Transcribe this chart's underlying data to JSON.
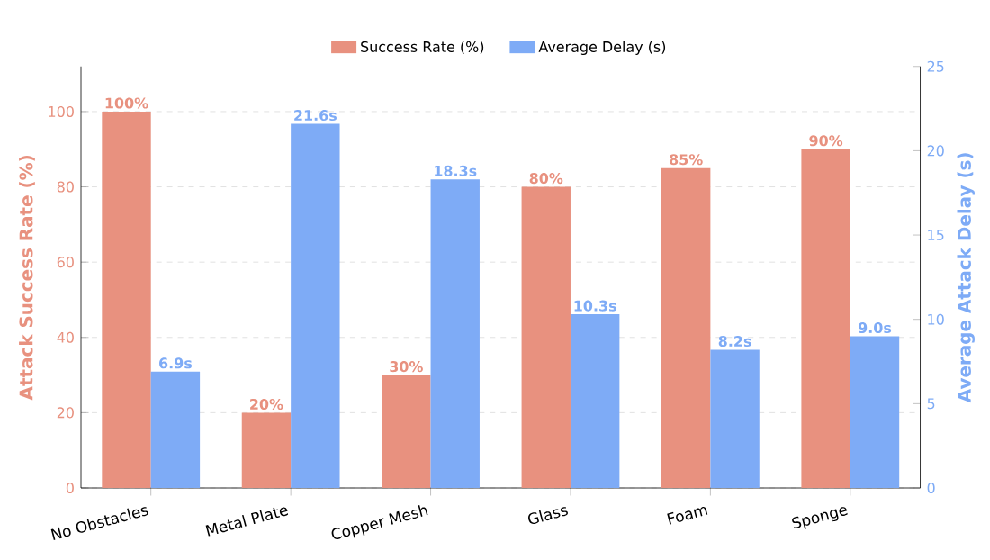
{
  "chart_data": {
    "type": "bar",
    "categories": [
      "No Obstacles",
      "Metal Plate",
      "Copper Mesh",
      "Glass",
      "Foam",
      "Sponge"
    ],
    "ylabel": "Attack Success Rate (%)",
    "y2label": "Average Attack Delay (s)",
    "series": [
      {
        "name": "Success Rate (%)",
        "color": "#e8917f",
        "values": [
          100,
          20,
          30,
          80,
          85,
          90
        ],
        "value_labels": [
          "100%",
          "20%",
          "30%",
          "80%",
          "85%",
          "90%"
        ]
      },
      {
        "name": "Average Delay (s)",
        "color": "#7eabf6",
        "axis": "y2",
        "values": [
          6.9,
          21.6,
          18.3,
          10.3,
          8.2,
          9.0
        ],
        "value_labels": [
          "6.9s",
          "21.6s",
          "18.3s",
          "10.3s",
          "8.2s",
          "9.0s"
        ]
      }
    ],
    "ylim": [
      0,
      112
    ],
    "yticks": [
      0,
      20,
      40,
      60,
      80,
      100
    ],
    "y2lim": [
      0,
      25
    ],
    "y2ticks": [
      0,
      5,
      10,
      15,
      20,
      25
    ],
    "grid": "y",
    "legend": "top"
  }
}
